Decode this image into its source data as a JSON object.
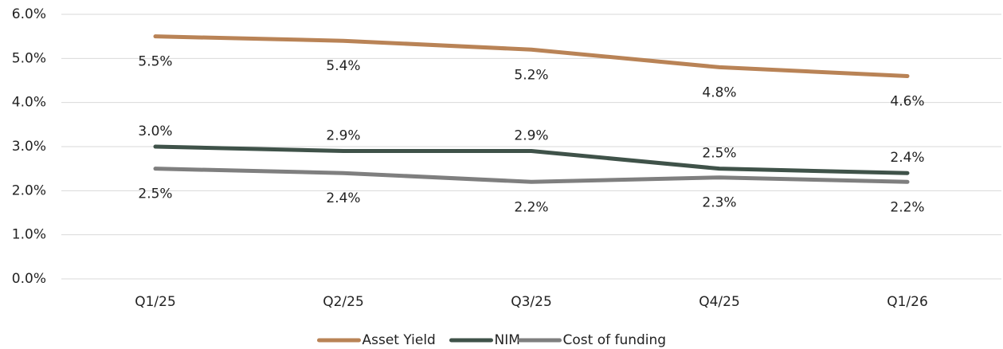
{
  "chart_data": {
    "type": "line",
    "categories": [
      "Q1/25",
      "Q2/25",
      "Q3/25",
      "Q4/25",
      "Q1/26"
    ],
    "series": [
      {
        "name": "Asset Yield",
        "color": "#b98356",
        "values": [
          5.5,
          5.4,
          5.2,
          4.8,
          4.6
        ],
        "value_labels": [
          "5.5%",
          "5.4%",
          "5.2%",
          "4.8%",
          "4.6%"
        ]
      },
      {
        "name": "NIM",
        "color": "#3f5249",
        "values": [
          3.0,
          2.9,
          2.9,
          2.5,
          2.4
        ],
        "value_labels": [
          "3.0%",
          "2.9%",
          "2.9%",
          "2.5%",
          "2.4%"
        ]
      },
      {
        "name": "Cost of funding",
        "color": "#7f7f7f",
        "values": [
          2.5,
          2.4,
          2.2,
          2.3,
          2.2
        ],
        "value_labels": [
          "2.5%",
          "2.4%",
          "2.2%",
          "2.3%",
          "2.2%"
        ]
      }
    ],
    "ylim": [
      0,
      6
    ],
    "yticks": [
      {
        "value": 0,
        "label": "0.0%"
      },
      {
        "value": 1,
        "label": "1.0%"
      },
      {
        "value": 2,
        "label": "2.0%"
      },
      {
        "value": 3,
        "label": "3.0%"
      },
      {
        "value": 4,
        "label": "4.0%"
      },
      {
        "value": 5,
        "label": "5.0%"
      },
      {
        "value": 6,
        "label": "6.0%"
      }
    ],
    "grid": true,
    "legend": "bottom"
  }
}
